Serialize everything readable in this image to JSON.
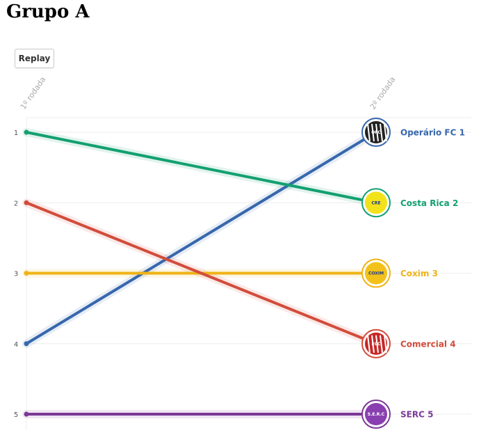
{
  "page": {
    "title": "Grupo A",
    "replay_label": "Replay"
  },
  "chart_data": {
    "type": "line",
    "x": [
      "1º rodada",
      "2º rodada"
    ],
    "y_ticks": [
      "1",
      "2",
      "3",
      "4",
      "5"
    ],
    "ylim": [
      1,
      5
    ],
    "y_reversed": true,
    "grid": true,
    "series": [
      {
        "name": "Operário FC",
        "values": [
          4,
          1
        ],
        "color": "#3767ad",
        "label": "Operário FC 1",
        "logo_text": "OFC"
      },
      {
        "name": "Costa Rica",
        "values": [
          1,
          2
        ],
        "color": "#13a071",
        "label": "Costa Rica 2",
        "logo_text": "CRE"
      },
      {
        "name": "Coxim",
        "values": [
          3,
          3
        ],
        "color": "#efb316",
        "label": "Coxim 3",
        "logo_text": "COXIM"
      },
      {
        "name": "Comercial",
        "values": [
          2,
          4
        ],
        "color": "#d24c3b",
        "label": "Comercial 4",
        "logo_text": "ECC"
      },
      {
        "name": "SERC",
        "values": [
          5,
          5
        ],
        "color": "#7a3a97",
        "label": "SERC 5",
        "logo_text": "S.E.R.C"
      }
    ]
  }
}
